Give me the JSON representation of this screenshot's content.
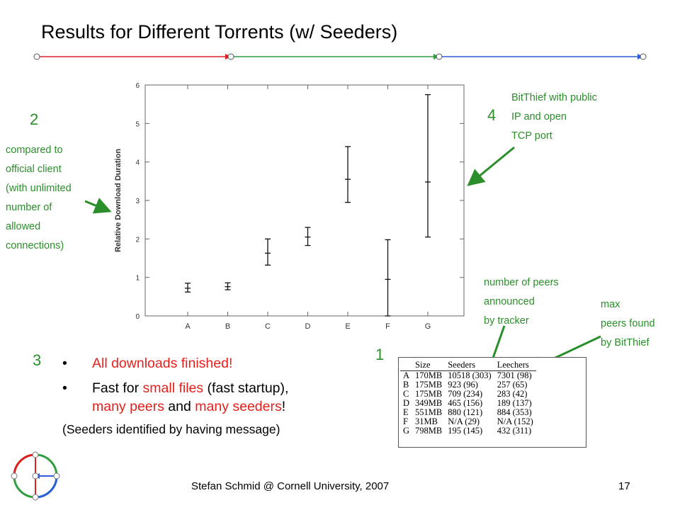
{
  "slide": {
    "title": "Results for Different Torrents (w/ Seeders)",
    "footer": "Stefan Schmid @ Cornell University, 2007",
    "page_number": "17",
    "labels": {
      "n1": "1",
      "n2": "2",
      "n3": "3",
      "n4": "4"
    },
    "annotations": {
      "compared": [
        "compared to",
        "official client",
        "(with unlimited",
        "number of",
        "allowed",
        "connections)"
      ],
      "bitthief": [
        "BitThief with public",
        "IP and open",
        "TCP port"
      ],
      "peers_announced": [
        "number of peers",
        "announced",
        "by tracker"
      ],
      "max_peers": [
        "max",
        "peers found",
        "by BitThief"
      ]
    },
    "bullets": [
      {
        "bullet": "•",
        "text": "All downloads finished!"
      },
      {
        "bullet": "•",
        "parts": [
          "Fast for ",
          "small files",
          " (fast startup),",
          "many peers",
          " and ",
          "many seeders",
          "!"
        ]
      }
    ],
    "note": "(Seeders identified by having message)",
    "colors": {
      "accent_green": "#2a8f2a",
      "highlight_red": "#e8201c",
      "timeline_red": "#e02020",
      "timeline_green": "#2e9e3e",
      "timeline_blue": "#2b5fd9"
    }
  },
  "chart_data": {
    "type": "error_bar",
    "ylabel": "Relative Download Duration",
    "categories": [
      "A",
      "B",
      "C",
      "D",
      "E",
      "F",
      "G"
    ],
    "ylim": [
      0,
      6
    ],
    "yticks": [
      "0",
      "1",
      "2",
      "3",
      "4",
      "5",
      "6"
    ],
    "series": [
      {
        "mean": [
          0.72,
          0.76,
          1.63,
          2.05,
          3.55,
          0.95,
          3.48
        ],
        "low": [
          0.62,
          0.68,
          1.32,
          1.83,
          2.95,
          0.0,
          2.05
        ],
        "high": [
          0.85,
          0.86,
          2.0,
          2.3,
          4.4,
          1.98,
          5.75
        ]
      }
    ]
  },
  "table": {
    "headers": [
      "",
      "Size",
      "Seeders",
      "Leechers"
    ],
    "rows": [
      [
        "A",
        "170MB",
        "10518 (303)",
        "7301 (98)"
      ],
      [
        "B",
        "175MB",
        "923 (96)",
        "257 (65)"
      ],
      [
        "C",
        "175MB",
        "709 (234)",
        "283 (42)"
      ],
      [
        "D",
        "349MB",
        "465 (156)",
        "189 (137)"
      ],
      [
        "E",
        "551MB",
        "880 (121)",
        "884 (353)"
      ],
      [
        "F",
        "31MB",
        "N/A (29)",
        "N/A (152)"
      ],
      [
        "G",
        "798MB",
        "195 (145)",
        "432 (311)"
      ]
    ]
  }
}
